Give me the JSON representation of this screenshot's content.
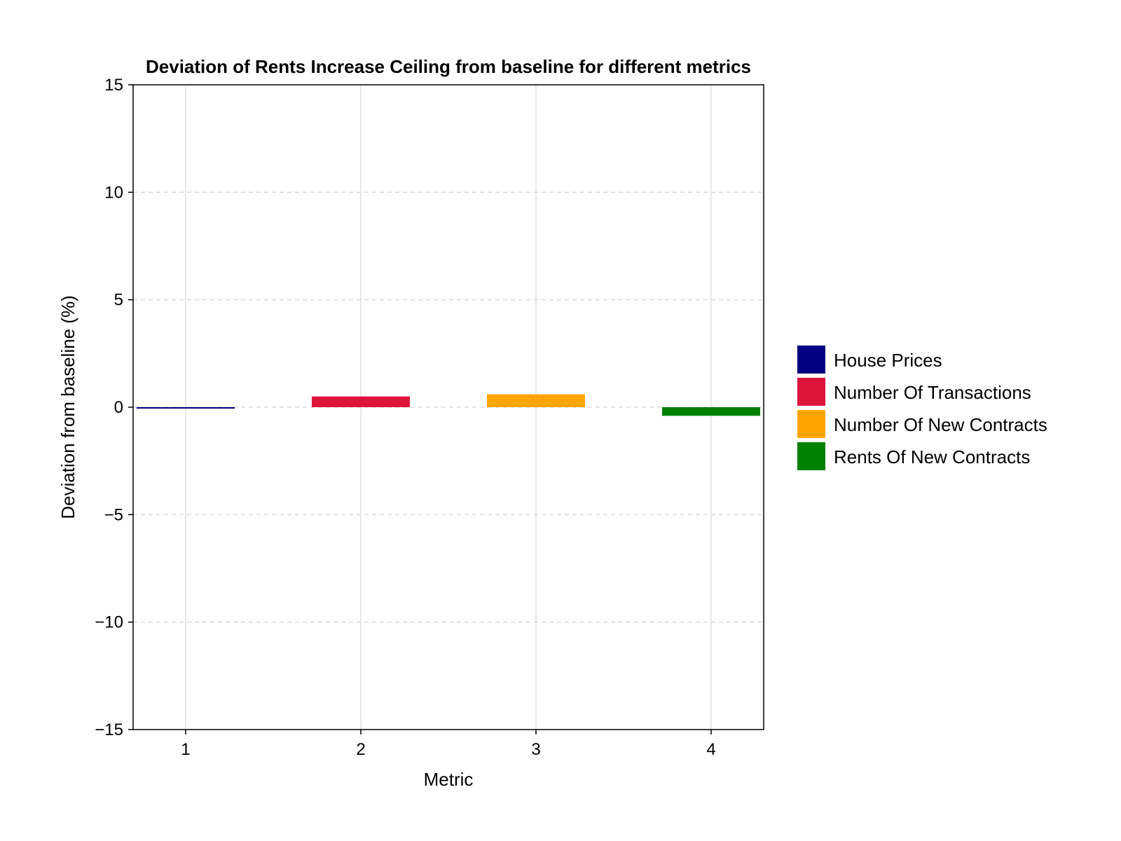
{
  "chart_data": {
    "type": "bar",
    "title": "Deviation of Rents Increase Ceiling from baseline for different metrics",
    "xlabel": "Metric",
    "ylabel": "Deviation from baseline (%)",
    "ylim": [
      -15,
      15
    ],
    "yticks": [
      -15,
      -10,
      -5,
      0,
      5,
      10,
      15
    ],
    "ytick_labels": [
      "−15",
      "−10",
      "−5",
      "0",
      "5",
      "10",
      "15"
    ],
    "xticks": [
      1,
      2,
      3,
      4
    ],
    "xtick_labels": [
      "1",
      "2",
      "3",
      "4"
    ],
    "grid": true,
    "legend_position": "right",
    "series": [
      {
        "name": "House Prices",
        "x": 1,
        "value": -0.05,
        "color": "#000080"
      },
      {
        "name": "Number Of Transactions",
        "x": 2,
        "value": 0.5,
        "color": "#DC143C"
      },
      {
        "name": "Number Of New Contracts",
        "x": 3,
        "value": 0.6,
        "color": "#FFA500"
      },
      {
        "name": "Rents Of New Contracts",
        "x": 4,
        "value": -0.4,
        "color": "#008000"
      }
    ]
  }
}
